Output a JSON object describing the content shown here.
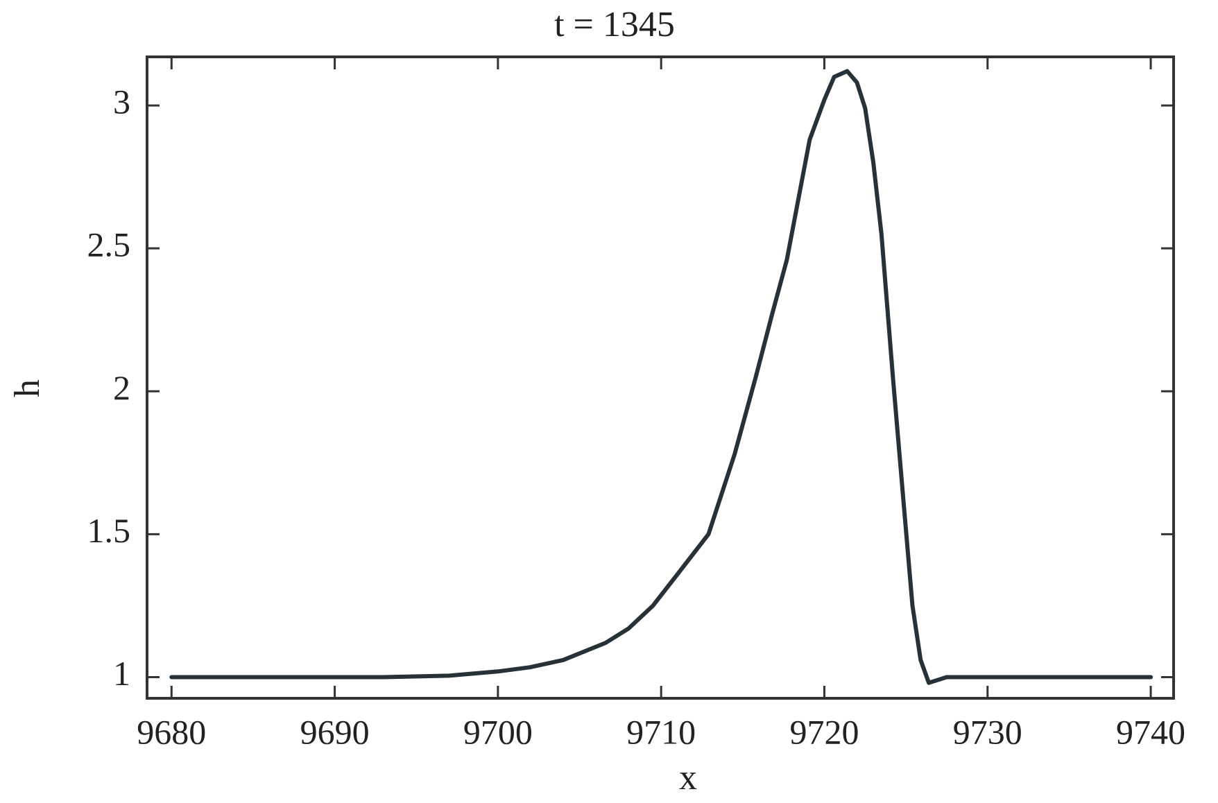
{
  "chart_data": {
    "type": "line",
    "title": "t = 1345",
    "x_label": "x",
    "y_label": "h",
    "x": [
      9680,
      9693,
      9697,
      9700,
      9702,
      9704,
      9706.6,
      9708,
      9709.5,
      9711,
      9712.9,
      9714.5,
      9715.8,
      9716.8,
      9717.7,
      9719.1,
      9720,
      9720.6,
      9721.4,
      9722,
      9722.5,
      9723,
      9723.5,
      9724.2,
      9724.9,
      9725.4,
      9725.9,
      9726.4,
      9727.5,
      9740
    ],
    "series": [
      {
        "name": "h",
        "color": "#263238",
        "values": [
          1,
          1,
          1.005,
          1.02,
          1.035,
          1.06,
          1.12,
          1.17,
          1.25,
          1.36,
          1.5,
          1.78,
          2.05,
          2.27,
          2.46,
          2.88,
          3.02,
          3.1,
          3.12,
          3.08,
          2.99,
          2.8,
          2.55,
          2.05,
          1.58,
          1.25,
          1.06,
          0.98,
          1.0,
          1
        ]
      }
    ],
    "xlim": [
      9678.5,
      9741.4
    ],
    "xticks": [
      9680,
      9690,
      9700,
      9710,
      9720,
      9730,
      9740
    ],
    "ylim": [
      0.926,
      3.17
    ],
    "yticks": [
      1,
      1.5,
      2,
      2.5,
      3
    ],
    "grid": false
  }
}
